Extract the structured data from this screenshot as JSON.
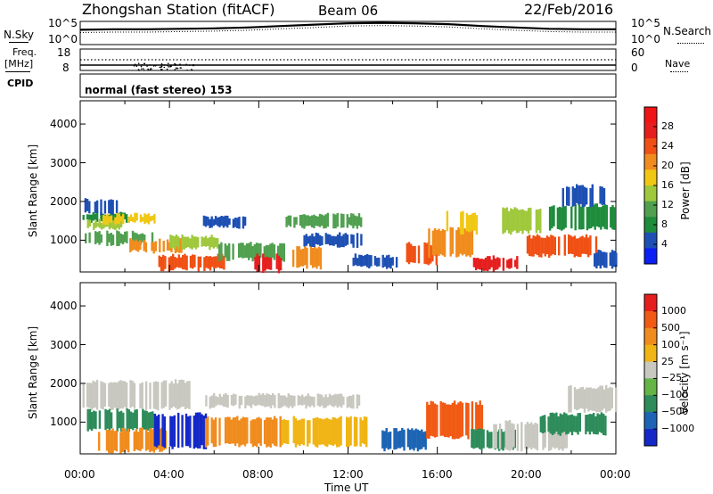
{
  "header": {
    "station": "Zhongshan Station (fitACF)",
    "beam": "Beam 06",
    "date": "22/Feb/2016"
  },
  "strip1": {
    "left_label": "N.Sky",
    "right_label": "N.Search",
    "left_ticks": [
      "10^5",
      "10^0"
    ],
    "right_ticks": [
      "10^5",
      "10^0"
    ]
  },
  "strip2": {
    "left_label_1": "Freq.",
    "left_label_2": "[MHz]",
    "right_label": "Nave",
    "left_ticks": [
      "18",
      "8"
    ],
    "right_ticks": [
      "60",
      "0"
    ]
  },
  "cpid": {
    "label": "CPID",
    "text": "normal (fast stereo) 153"
  },
  "panels": {
    "ylabel": "Slant Range [km]",
    "xlabel": "Time UT",
    "yticks": [
      "4000",
      "3000",
      "2000",
      "1000"
    ],
    "xticks": [
      "00:00",
      "04:00",
      "08:00",
      "12:00",
      "16:00",
      "20:00",
      "00:00"
    ]
  },
  "colorbars": {
    "power": {
      "label": "Power [dB]",
      "ticks": [
        "28",
        "24",
        "20",
        "16",
        "12",
        "8",
        "4"
      ],
      "colors": [
        "#0a1ef5",
        "#1e50b4",
        "#1f8c3c",
        "#50a050",
        "#a0c83c",
        "#f0c814",
        "#f08c1e",
        "#f05014",
        "#e61e1e",
        "#f01414"
      ]
    },
    "velocity": {
      "label": "Velocity [m s⁻¹]",
      "ticks": [
        "1000",
        "500",
        "100",
        "25",
        "−25",
        "−100",
        "−500",
        "−1000"
      ],
      "colors": [
        "#1428c8",
        "#1e64b4",
        "#2d8c5a",
        "#64b446",
        "#c8c8c0",
        "#f0b414",
        "#f08c1e",
        "#f05a14",
        "#e61e1e"
      ]
    }
  },
  "chart_data": [
    {
      "type": "line",
      "x_label_range": [
        "00:00",
        "00:00"
      ],
      "series": [
        {
          "values": [
            3.2,
            3.3,
            3.3,
            3.4,
            3.5,
            3.7,
            4.0,
            4.3,
            4.6,
            4.7,
            4.6,
            4.4,
            4.0,
            3.7,
            3.4,
            3.3,
            3.3
          ]
        },
        {
          "values": [
            2.6,
            2.7,
            2.7,
            2.8,
            2.9,
            3.1,
            3.4,
            3.7,
            4.0,
            4.1,
            4.0,
            3.8,
            3.4,
            3.1,
            2.8,
            2.7,
            2.7
          ]
        }
      ],
      "ylim": [
        0,
        5
      ]
    },
    {
      "type": "heatmap",
      "title": "",
      "xlabel": "Time UT",
      "ylabel": "Slant Range [km]",
      "xlim_hours": [
        0,
        24
      ],
      "ylim": [
        180,
        4600
      ],
      "colorbar": "Power [dB]"
    },
    {
      "type": "heatmap",
      "title": "",
      "xlabel": "Time UT",
      "ylabel": "Slant Range [km]",
      "xlim_hours": [
        0,
        24
      ],
      "ylim": [
        180,
        4600
      ],
      "colorbar": "Velocity [m s⁻¹]"
    }
  ]
}
